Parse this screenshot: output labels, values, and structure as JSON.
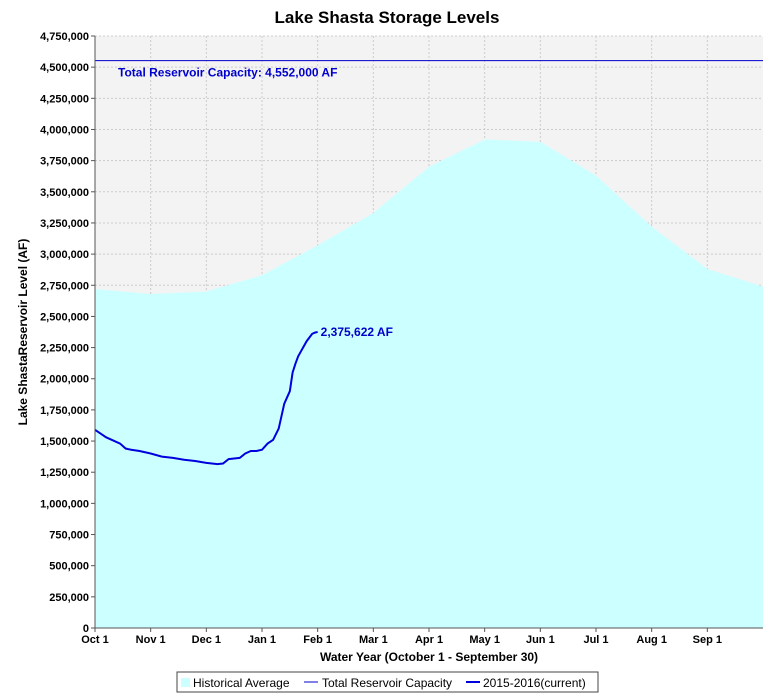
{
  "chart_data": {
    "type": "area",
    "title": "Lake Shasta Storage Levels",
    "xlabel": "Water Year (October 1 - September 30)",
    "ylabel": "Lake ShastaReservoir Level (AF)",
    "xlim": [
      0,
      12
    ],
    "ylim": [
      0,
      4750000
    ],
    "x_ticks": [
      "Oct 1",
      "Nov 1",
      "Dec 1",
      "Jan 1",
      "Feb 1",
      "Mar 1",
      "Apr 1",
      "May 1",
      "Jun 1",
      "Jul 1",
      "Aug 1",
      "Sep 1"
    ],
    "y_ticks": [
      {
        "value": 0,
        "label": "0"
      },
      {
        "value": 250000,
        "label": "250,000"
      },
      {
        "value": 500000,
        "label": "500,000"
      },
      {
        "value": 750000,
        "label": "750,000"
      },
      {
        "value": 1000000,
        "label": "1,000,000"
      },
      {
        "value": 1250000,
        "label": "1,250,000"
      },
      {
        "value": 1500000,
        "label": "1,500,000"
      },
      {
        "value": 1750000,
        "label": "1,750,000"
      },
      {
        "value": 2000000,
        "label": "2,000,000"
      },
      {
        "value": 2250000,
        "label": "2,250,000"
      },
      {
        "value": 2500000,
        "label": "2,500,000"
      },
      {
        "value": 2750000,
        "label": "2,750,000"
      },
      {
        "value": 3000000,
        "label": "3,000,000"
      },
      {
        "value": 3250000,
        "label": "3,250,000"
      },
      {
        "value": 3500000,
        "label": "3,500,000"
      },
      {
        "value": 3750000,
        "label": "3,750,000"
      },
      {
        "value": 4000000,
        "label": "4,000,000"
      },
      {
        "value": 4250000,
        "label": "4,250,000"
      },
      {
        "value": 4500000,
        "label": "4,500,000"
      },
      {
        "value": 4750000,
        "label": "4,750,000"
      }
    ],
    "grid": true,
    "series": [
      {
        "name": "Historical Average",
        "kind": "area",
        "color": "#ccffff",
        "x": [
          0,
          0.5,
          1,
          2,
          3,
          4,
          5,
          6,
          7,
          8,
          9,
          10,
          11,
          12
        ],
        "values": [
          2720000,
          2700000,
          2680000,
          2700000,
          2830000,
          3070000,
          3330000,
          3700000,
          3920000,
          3900000,
          3630000,
          3220000,
          2880000,
          2740000
        ]
      },
      {
        "name": "Total Reservoir Capacity",
        "kind": "hline",
        "color": "#0000cc",
        "value": 4552000,
        "annotation": "Total Reservoir Capacity: 4,552,000 AF"
      },
      {
        "name": "2015-2016(current)",
        "kind": "line",
        "color": "#0000dd",
        "x": [
          0,
          0.1,
          0.2,
          0.3,
          0.45,
          0.55,
          0.65,
          0.8,
          1.0,
          1.2,
          1.4,
          1.6,
          1.8,
          2.0,
          2.2,
          2.3,
          2.4,
          2.5,
          2.6,
          2.7,
          2.8,
          2.9,
          3.0,
          3.1,
          3.2,
          3.3,
          3.4,
          3.5,
          3.55,
          3.6,
          3.65,
          3.7,
          3.75,
          3.8,
          3.85,
          3.9,
          3.95,
          4.0
        ],
        "values": [
          1590000,
          1560000,
          1530000,
          1510000,
          1480000,
          1440000,
          1430000,
          1420000,
          1400000,
          1375000,
          1365000,
          1350000,
          1340000,
          1325000,
          1315000,
          1320000,
          1355000,
          1360000,
          1365000,
          1400000,
          1420000,
          1420000,
          1430000,
          1480000,
          1510000,
          1600000,
          1800000,
          1900000,
          2050000,
          2120000,
          2180000,
          2220000,
          2260000,
          2300000,
          2330000,
          2360000,
          2370000,
          2375622
        ],
        "end_label": "2,375,622 AF"
      }
    ],
    "legend": {
      "position": "bottom",
      "entries": [
        "Historical Average",
        "Total Reservoir Capacity",
        "2015-2016(current)"
      ]
    }
  }
}
